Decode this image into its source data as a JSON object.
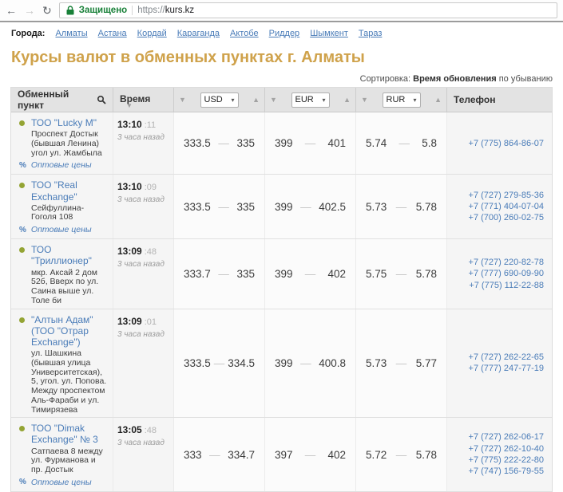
{
  "browser": {
    "icons": {
      "back": "←",
      "forward": "→",
      "reload": "↻"
    },
    "security_label": "Защищено",
    "url_scheme": "https://",
    "url_host": "kurs.kz"
  },
  "cities": {
    "label": "Города:",
    "items": [
      "Алматы",
      "Астана",
      "Кордай",
      "Караганда",
      "Актобе",
      "Риддер",
      "Шымкент",
      "Тараз"
    ]
  },
  "page": {
    "title": "Курсы валют в обменных пунктах г. Алматы"
  },
  "sorting": {
    "label": "Сортировка:",
    "field": "Время обновления",
    "direction": "по убыванию"
  },
  "table": {
    "icons": {
      "sort_desc": "▼",
      "sort_asc": "▲",
      "select_caret": "▾"
    },
    "headers": {
      "exchange": "Обменный пункт",
      "time": "Время",
      "phone": "Телефон"
    },
    "currencies": [
      "USD",
      "EUR",
      "RUR"
    ],
    "wholesale_symbol": "%",
    "wholesale_label": "Оптовые цены",
    "rate_separator": "—",
    "rows": [
      {
        "name": "ТОО \"Lucky M\"",
        "address": "Проспект Достык (бывшая Ленина) угол ул. Жамбыла",
        "wholesale": true,
        "time": "13:10",
        "seconds": ":11",
        "ago": "3 часа назад",
        "usd": {
          "buy": "333.5",
          "sell": "335"
        },
        "eur": {
          "buy": "399",
          "sell": "401"
        },
        "rur": {
          "buy": "5.74",
          "sell": "5.8"
        },
        "phones": [
          "+7 (775) 864-86-07"
        ]
      },
      {
        "name": "ТОО \"Real Exchange\"",
        "address": "Сейфуллина-Гоголя 108",
        "wholesale": true,
        "time": "13:10",
        "seconds": ":09",
        "ago": "3 часа назад",
        "usd": {
          "buy": "333.5",
          "sell": "335"
        },
        "eur": {
          "buy": "399",
          "sell": "402.5"
        },
        "rur": {
          "buy": "5.73",
          "sell": "5.78"
        },
        "phones": [
          "+7 (727) 279-85-36",
          "+7 (771) 404-07-04",
          "+7 (700) 260-02-75"
        ]
      },
      {
        "name": "ТОО \"Триллионер\"",
        "address": "мкр. Аксай 2 дом 52б, Вверх по ул. Саина выше ул. Толе би",
        "wholesale": false,
        "time": "13:09",
        "seconds": ":48",
        "ago": "3 часа назад",
        "usd": {
          "buy": "333.7",
          "sell": "335"
        },
        "eur": {
          "buy": "399",
          "sell": "402"
        },
        "rur": {
          "buy": "5.75",
          "sell": "5.78"
        },
        "phones": [
          "+7 (727) 220-82-78",
          "+7 (777) 690-09-90",
          "+7 (775) 112-22-88"
        ]
      },
      {
        "name": "\"Алтын Адам\" (ТОО \"Отрар Exchange\")",
        "address": "ул. Шашкина (бывшая улица Университетская), 5, угол. ул. Попова. Между проспектом Аль-Фараби и ул. Тимирязева",
        "wholesale": false,
        "time": "13:09",
        "seconds": ":01",
        "ago": "3 часа назад",
        "usd": {
          "buy": "333.5",
          "sell": "334.5"
        },
        "eur": {
          "buy": "399",
          "sell": "400.8"
        },
        "rur": {
          "buy": "5.73",
          "sell": "5.77"
        },
        "phones": [
          "+7 (727) 262-22-65",
          "+7 (777) 247-77-19"
        ]
      },
      {
        "name": "ТОО \"Dimak Exchange\" № 3",
        "address": "Сатпаева 8 между ул. Фурманова и пр. Достык",
        "wholesale": true,
        "time": "13:05",
        "seconds": ":48",
        "ago": "3 часа назад",
        "usd": {
          "buy": "333",
          "sell": "334.7"
        },
        "eur": {
          "buy": "397",
          "sell": "402"
        },
        "rur": {
          "buy": "5.72",
          "sell": "5.78"
        },
        "phones": [
          "+7 (727) 262-06-17",
          "+7 (727) 262-10-40",
          "+7 (775) 222-22-80",
          "+7 (747) 156-79-55"
        ]
      }
    ]
  },
  "colors": {
    "accent_gold": "#cfa24b",
    "link_blue": "#4a7cb8",
    "secure_green": "#188038",
    "dot_green": "#94a434"
  }
}
